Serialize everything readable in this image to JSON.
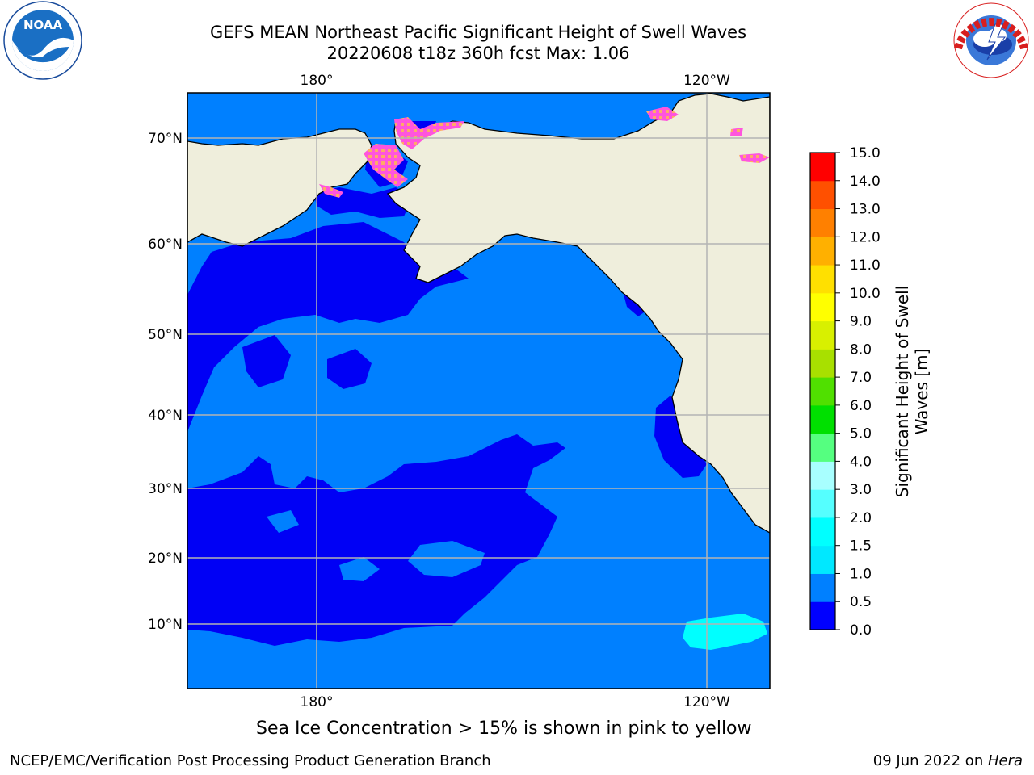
{
  "header": {
    "title_line1": "GEFS MEAN Northeast Pacific Significant Height of Swell Waves",
    "title_line2": "20220608 t18z 360h fcst   Max: 1.06"
  },
  "logos": {
    "left": "NOAA",
    "left_ring_text": "NATIONAL OCEANIC AND ATMOSPHERIC ADMINISTRATION",
    "left_bottom_text": "U.S. DEPARTMENT OF COMMERCE",
    "right_ring_text": "NATIONAL WEATHER SERVICE"
  },
  "map": {
    "lon_labels": [
      "180°",
      "120°W"
    ],
    "lat_labels": [
      "70°N",
      "60°N",
      "50°N",
      "40°N",
      "30°N",
      "20°N",
      "10°N"
    ],
    "colors": {
      "land": "#efeedc",
      "ocean_low": "#0000f5",
      "ocean_mid": "#0080ff",
      "ocean_high": "#00ffff",
      "grid": "#b4b4b4",
      "ice": "#ff66cc"
    }
  },
  "colorbar": {
    "label": "Significant Height of Swell Waves [m]",
    "label_line1": "Significant Height of Swell",
    "label_line2": "Waves [m]",
    "ticks": [
      "15.0",
      "14.0",
      "13.0",
      "12.0",
      "11.0",
      "10.0",
      "9.0",
      "8.0",
      "7.0",
      "6.0",
      "5.0",
      "4.0",
      "3.0",
      "2.0",
      "1.5",
      "1.0",
      "0.5",
      "0.0"
    ],
    "bins_bottom_to_top": [
      "#0000ff",
      "#0080ff",
      "#00e8ff",
      "#00ffff",
      "#55ffff",
      "#a8ffff",
      "#55ff80",
      "#00e000",
      "#50e000",
      "#a8e000",
      "#d8f000",
      "#ffff00",
      "#ffe000",
      "#ffb000",
      "#ff8000",
      "#ff5000",
      "#ff0000"
    ]
  },
  "caption": "Sea Ice Concentration > 15% is shown in pink to yellow",
  "footer": {
    "left": "NCEP/EMC/Verification Post Processing Product Generation Branch",
    "right_prefix": "09 Jun 2022 on ",
    "right_italic": "Hera"
  }
}
